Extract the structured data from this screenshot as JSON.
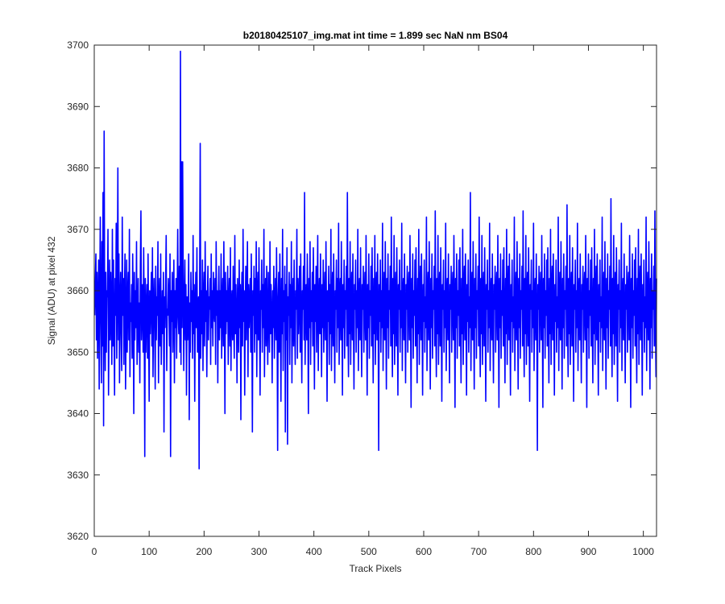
{
  "chart_data": {
    "type": "line",
    "title": "b20180425107_img.mat int time = 1.899 sec  NaN nm BS04",
    "xlabel": "Track Pixels",
    "ylabel": "Signal (ADU) at pixel 432",
    "xlim": [
      0,
      1024
    ],
    "ylim": [
      3620,
      3700
    ],
    "xticks": [
      0,
      100,
      200,
      300,
      400,
      500,
      600,
      700,
      800,
      900,
      1000
    ],
    "yticks": [
      3620,
      3630,
      3640,
      3650,
      3660,
      3670,
      3680,
      3690,
      3700
    ],
    "grid": false,
    "line_color": "#0000ff",
    "series": [
      {
        "x_start": 1,
        "x_step": 1,
        "mean": 3656,
        "spread": 6,
        "values": [
          3656,
          3662,
          3666,
          3652,
          3663,
          3649,
          3658,
          3665,
          3644,
          3660,
          3672,
          3655,
          3645,
          3668,
          3651,
          3676,
          3638,
          3686,
          3656,
          3647,
          3663,
          3650,
          3660,
          3659,
          3670,
          3643,
          3656,
          3665,
          3652,
          3663,
          3657,
          3648,
          3670,
          3651,
          3665,
          3654,
          3643,
          3662,
          3656,
          3671,
          3649,
          3660,
          3680,
          3652,
          3666,
          3645,
          3658,
          3663,
          3653,
          3647,
          3672,
          3656,
          3662,
          3648,
          3660,
          3666,
          3644,
          3654,
          3665,
          3650,
          3659,
          3663,
          3652,
          3670,
          3646,
          3658,
          3655,
          3661,
          3649,
          3666,
          3657,
          3640,
          3663,
          3652,
          3660,
          3654,
          3668,
          3648,
          3656,
          3662,
          3650,
          3658,
          3645,
          3664,
          3673,
          3652,
          3657,
          3661,
          3650,
          3667,
          3655,
          3633,
          3662,
          3650,
          3657,
          3661,
          3649,
          3666,
          3654,
          3642,
          3660,
          3653,
          3658,
          3663,
          3651,
          3667,
          3646,
          3657,
          3662,
          3655,
          3644,
          3664,
          3652,
          3659,
          3656,
          3668,
          3645,
          3658,
          3662,
          3651,
          3666,
          3648,
          3655,
          3660,
          3653,
          3663,
          3637,
          3659,
          3654,
          3661,
          3669,
          3647,
          3657,
          3656,
          3662,
          3658,
          3651,
          3666,
          3633,
          3660,
          3655,
          3663,
          3650,
          3657,
          3665,
          3645,
          3660,
          3654,
          3662,
          3649,
          3658,
          3670,
          3656,
          3653,
          3664,
          3650,
          3699,
          3648,
          3681,
          3654,
          3681,
          3662,
          3647,
          3658,
          3665,
          3652,
          3661,
          3643,
          3659,
          3652,
          3657,
          3666,
          3639,
          3658,
          3650,
          3663,
          3655,
          3660,
          3649,
          3669,
          3653,
          3661,
          3642,
          3657,
          3663,
          3654,
          3667,
          3650,
          3658,
          3659,
          3631,
          3662,
          3684,
          3649,
          3660,
          3653,
          3665,
          3647,
          3659,
          3663,
          3651,
          3668,
          3655,
          3660,
          3646,
          3658,
          3664,
          3652,
          3659,
          3657,
          3662,
          3648,
          3666,
          3654,
          3660,
          3651,
          3663,
          3657,
          3655,
          3662,
          3648,
          3668,
          3656,
          3660,
          3645,
          3658,
          3664,
          3652,
          3660,
          3654,
          3666,
          3649,
          3658,
          3662,
          3651,
          3668,
          3656,
          3640,
          3663,
          3653,
          3660,
          3655,
          3664,
          3648,
          3658,
          3662,
          3651,
          3667,
          3647,
          3658,
          3660,
          3652,
          3664,
          3655,
          3649,
          3669,
          3653,
          3661,
          3656,
          3645,
          3662,
          3657,
          3650,
          3665,
          3654,
          3661,
          3639,
          3658,
          3663,
          3651,
          3670,
          3655,
          3660,
          3643,
          3657,
          3664,
          3652,
          3659,
          3668,
          3646,
          3661,
          3654,
          3658,
          3662,
          3650,
          3666,
          3655,
          3637,
          3660,
          3656,
          3664,
          3650,
          3662,
          3653,
          3668,
          3646,
          3659,
          3663,
          3652,
          3667,
          3655,
          3643,
          3660,
          3657,
          3665,
          3650,
          3661,
          3654,
          3670,
          3646,
          3658,
          3662,
          3651,
          3664,
          3655,
          3648,
          3663,
          3657,
          3650,
          3668,
          3653,
          3661,
          3656,
          3645,
          3660,
          3654,
          3664,
          3649,
          3658,
          3662,
          3652,
          3667,
          3655,
          3634,
          3659,
          3663,
          3650,
          3666,
          3656,
          3642,
          3662,
          3653,
          3670,
          3647,
          3660,
          3655,
          3664,
          3637,
          3661,
          3652,
          3667,
          3635,
          3659,
          3656,
          3663,
          3648,
          3661,
          3654,
          3668,
          3645,
          3658,
          3662,
          3651,
          3665,
          3655,
          3648,
          3660,
          3657,
          3670,
          3649,
          3662,
          3653,
          3658,
          3664,
          3650,
          3666,
          3655,
          3645,
          3660,
          3657,
          3664,
          3652,
          3676,
          3648,
          3658,
          3661,
          3652,
          3666,
          3656,
          3640,
          3662,
          3654,
          3668,
          3648,
          3660,
          3655,
          3663,
          3651,
          3667,
          3657,
          3644,
          3661,
          3655,
          3664,
          3650,
          3659,
          3669,
          3647,
          3658,
          3662,
          3653,
          3666,
          3656,
          3646,
          3661,
          3654,
          3665,
          3650,
          3659,
          3663,
          3652,
          3668,
          3656,
          3642,
          3660,
          3655,
          3664,
          3648,
          3661,
          3653,
          3670,
          3647,
          3658,
          3663,
          3651,
          3666,
          3655,
          3645,
          3660,
          3657,
          3665,
          3650,
          3662,
          3654,
          3671,
          3648,
          3659,
          3662,
          3652,
          3668,
          3656,
          3643,
          3661,
          3654,
          3665,
          3649,
          3660,
          3657,
          3664,
          3651,
          3676,
          3655,
          3646,
          3662,
          3653,
          3668,
          3648,
          3659,
          3663,
          3652,
          3666,
          3655,
          3644,
          3661,
          3657,
          3665,
          3650,
          3660,
          3654,
          3670,
          3647,
          3659,
          3662,
          3652,
          3667,
          3655,
          3646,
          3661,
          3657,
          3664,
          3650,
          3659,
          3663,
          3652,
          3669,
          3655,
          3643,
          3661,
          3654,
          3666,
          3649,
          3660,
          3656,
          3664,
          3651,
          3667,
          3656,
          3645,
          3662,
          3653,
          3669,
          3648,
          3660,
          3663,
          3652,
          3666,
          3656,
          3634,
          3661,
          3655,
          3665,
          3650,
          3660,
          3654,
          3671,
          3647,
          3659,
          3663,
          3652,
          3668,
          3656,
          3644,
          3662,
          3654,
          3666,
          3649,
          3660,
          3657,
          3664,
          3651,
          3672,
          3655,
          3646,
          3662,
          3653,
          3669,
          3648,
          3659,
          3663,
          3651,
          3667,
          3656,
          3643,
          3661,
          3657,
          3665,
          3650,
          3660,
          3654,
          3671,
          3647,
          3659,
          3662,
          3652,
          3666,
          3655,
          3645,
          3661,
          3657,
          3664,
          3650,
          3660,
          3663,
          3652,
          3669,
          3656,
          3641,
          3662,
          3654,
          3666,
          3649,
          3660,
          3656,
          3665,
          3651,
          3667,
          3655,
          3645,
          3662,
          3653,
          3670,
          3648,
          3660,
          3664,
          3652,
          3666,
          3656,
          3643,
          3661,
          3655,
          3665,
          3650,
          3659,
          3654,
          3672,
          3647,
          3659,
          3663,
          3652,
          3668,
          3656,
          3644,
          3662,
          3654,
          3666,
          3649,
          3660,
          3657,
          3664,
          3651,
          3673,
          3655,
          3646,
          3662,
          3653,
          3669,
          3648,
          3659,
          3663,
          3651,
          3667,
          3656,
          3642,
          3661,
          3657,
          3665,
          3650,
          3660,
          3654,
          3671,
          3647,
          3659,
          3662,
          3652,
          3666,
          3655,
          3645,
          3661,
          3657,
          3664,
          3650,
          3660,
          3663,
          3652,
          3669,
          3656,
          3641,
          3662,
          3654,
          3666,
          3649,
          3660,
          3656,
          3665,
          3651,
          3667,
          3655,
          3645,
          3662,
          3653,
          3670,
          3648,
          3660,
          3664,
          3652,
          3666,
          3656,
          3643,
          3661,
          3655,
          3665,
          3650,
          3659,
          3654,
          3676,
          3647,
          3659,
          3663,
          3652,
          3668,
          3656,
          3644,
          3662,
          3654,
          3666,
          3649,
          3660,
          3657,
          3664,
          3651,
          3672,
          3655,
          3646,
          3662,
          3653,
          3669,
          3648,
          3659,
          3663,
          3651,
          3667,
          3656,
          3642,
          3661,
          3657,
          3665,
          3650,
          3660,
          3654,
          3671,
          3647,
          3659,
          3662,
          3652,
          3666,
          3655,
          3645,
          3661,
          3657,
          3664,
          3650,
          3660,
          3663,
          3652,
          3669,
          3656,
          3641,
          3662,
          3654,
          3666,
          3649,
          3660,
          3656,
          3665,
          3651,
          3667,
          3655,
          3645,
          3662,
          3653,
          3670,
          3648,
          3660,
          3664,
          3652,
          3666,
          3656,
          3643,
          3661,
          3655,
          3665,
          3650,
          3659,
          3654,
          3672,
          3647,
          3659,
          3663,
          3652,
          3668,
          3656,
          3644,
          3662,
          3654,
          3666,
          3649,
          3660,
          3657,
          3664,
          3651,
          3673,
          3655,
          3646,
          3662,
          3653,
          3669,
          3648,
          3659,
          3663,
          3651,
          3667,
          3656,
          3642,
          3661,
          3657,
          3665,
          3650,
          3660,
          3654,
          3671,
          3647,
          3659,
          3662,
          3652,
          3666,
          3655,
          3634,
          3661,
          3657,
          3664,
          3650,
          3660,
          3663,
          3652,
          3669,
          3656,
          3641,
          3662,
          3654,
          3666,
          3649,
          3660,
          3656,
          3665,
          3651,
          3667,
          3655,
          3645,
          3662,
          3653,
          3670,
          3648,
          3660,
          3664,
          3652,
          3666,
          3656,
          3643,
          3661,
          3655,
          3665,
          3650,
          3659,
          3654,
          3672,
          3647,
          3659,
          3663,
          3652,
          3668,
          3656,
          3644,
          3662,
          3654,
          3666,
          3649,
          3660,
          3657,
          3664,
          3651,
          3674,
          3655,
          3646,
          3662,
          3653,
          3669,
          3648,
          3659,
          3663,
          3651,
          3667,
          3656,
          3642,
          3661,
          3657,
          3665,
          3650,
          3660,
          3654,
          3671,
          3647,
          3659,
          3662,
          3652,
          3666,
          3655,
          3645,
          3661,
          3657,
          3664,
          3650,
          3660,
          3663,
          3652,
          3669,
          3656,
          3641,
          3662,
          3654,
          3666,
          3649,
          3660,
          3656,
          3665,
          3651,
          3667,
          3655,
          3645,
          3662,
          3653,
          3670,
          3648,
          3660,
          3664,
          3652,
          3666,
          3656,
          3643,
          3661,
          3655,
          3665,
          3650,
          3659,
          3654,
          3672,
          3647,
          3659,
          3663,
          3652,
          3668,
          3656,
          3644,
          3662,
          3654,
          3666,
          3649,
          3660,
          3657,
          3664,
          3651,
          3675,
          3655,
          3646,
          3662,
          3653,
          3669,
          3648,
          3659,
          3663,
          3651,
          3667,
          3656,
          3642,
          3661,
          3657,
          3665,
          3650,
          3660,
          3654,
          3671,
          3647,
          3659,
          3662,
          3652,
          3666,
          3655,
          3645,
          3661,
          3657,
          3664,
          3650,
          3660,
          3663,
          3652,
          3669,
          3656,
          3641,
          3662,
          3654,
          3666,
          3649,
          3660,
          3656,
          3665,
          3651,
          3667,
          3655,
          3645,
          3662,
          3653,
          3670,
          3648,
          3660,
          3664,
          3652,
          3666,
          3656,
          3643,
          3661,
          3655,
          3665,
          3650,
          3659,
          3654,
          3672,
          3647,
          3659,
          3663,
          3652,
          3668,
          3656,
          3644,
          3662,
          3654,
          3666,
          3649,
          3660,
          3657,
          3664,
          3651,
          3673,
          3655,
          3646,
          3662,
          3653,
          3669,
          3648,
          3659,
          3663,
          3651,
          3667,
          3656,
          3642,
          3661,
          3657,
          3665,
          3650,
          3660,
          3654,
          3671,
          3647,
          3659,
          3662,
          3652,
          3666,
          3655,
          3645,
          3661,
          3657,
          3664,
          3650,
          3660,
          3663,
          3652,
          3669,
          3656,
          3641,
          3662,
          3654,
          3666,
          3649,
          3660,
          3656,
          3665,
          3651,
          3667,
          3655,
          3645,
          3662,
          3653,
          3670,
          3648,
          3660,
          3664,
          3652,
          3666,
          3656,
          3643,
          3661,
          3655,
          3665,
          3650,
          3659,
          3654,
          3672,
          3647,
          3659,
          3663,
          3652,
          3668,
          3656,
          3644,
          3662,
          3654,
          3666,
          3649,
          3660,
          3657,
          3664,
          3651,
          3673,
          3655,
          3646,
          3662,
          3653,
          3669,
          3648,
          3659,
          3663,
          3651,
          3667,
          3656,
          3642,
          3661,
          3657,
          3665,
          3650,
          3660,
          3654,
          3671,
          3647,
          3659,
          3662,
          3652,
          3666,
          3655,
          3645,
          3661,
          3657,
          3664,
          3650,
          3660
        ]
      }
    ]
  }
}
